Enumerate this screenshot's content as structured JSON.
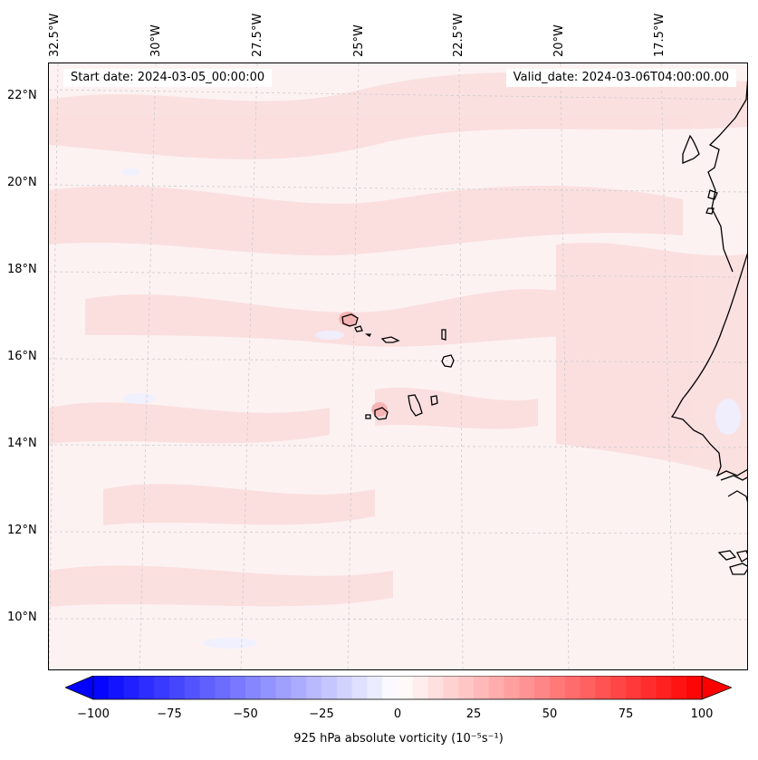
{
  "map": {
    "start_label": "Start date: 2024-03-05_00:00:00",
    "valid_label": "Valid_date: 2024-03-06T04:00:00.00",
    "lat_labels": [
      "22°N",
      "20°N",
      "18°N",
      "16°N",
      "14°N",
      "12°N",
      "10°N"
    ],
    "lon_labels": [
      "32.5°W",
      "30°W",
      "27.5°W",
      "25°W",
      "22.5°W",
      "20°W",
      "17.5°W"
    ],
    "islands": [
      "Santo Antão",
      "São Vicente",
      "São Nicolau",
      "Sal",
      "Boa Vista",
      "Maio",
      "Santiago",
      "Fogo",
      "Brava"
    ],
    "coastline_color": "#000000",
    "gridline_color": "#cccccc"
  },
  "colorbar": {
    "label": "925 hPa absolute vorticity (10⁻⁵s⁻¹)",
    "ticks": [
      "−100",
      "−75",
      "−50",
      "−25",
      "0",
      "25",
      "50",
      "75",
      "100"
    ],
    "min": -100,
    "max": 100,
    "colors": {
      "negative": "#0000ff",
      "neutral": "#ffffff",
      "positive": "#ff0000"
    },
    "extend": "both"
  }
}
